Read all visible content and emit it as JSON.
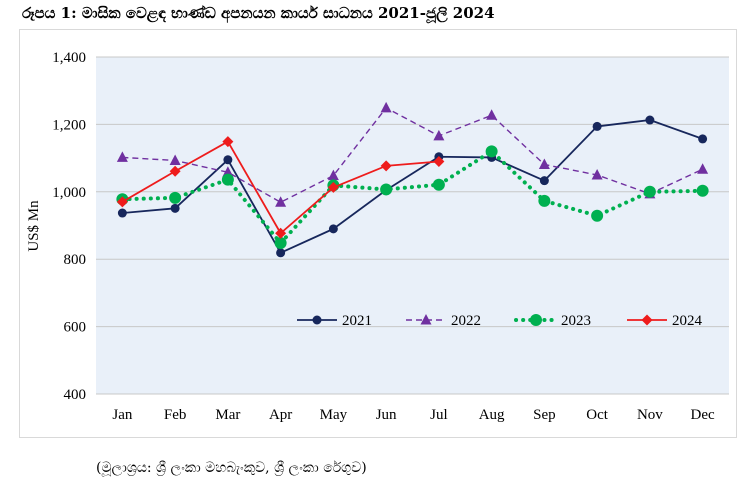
{
  "figure": {
    "title": "රූපය 1: මාසික වෙළඳ භාණ්ඩ අපනයන කාර්ය සාධනය 2021-ජූලි 2024",
    "source": "(මූලාශ්‍රය: ශ්‍රී ලංකා මහබැංකුව, ශ්‍රී ලංකා රේගුව)"
  },
  "chart_data": {
    "type": "line",
    "title": "",
    "xlabel": "",
    "ylabel": "US$ Mn",
    "ylim": [
      400,
      1400
    ],
    "yticks": [
      400,
      600,
      800,
      1000,
      1200,
      1400
    ],
    "ytick_labels": [
      "400",
      "600",
      "800",
      "1,000",
      "1,200",
      "1,400"
    ],
    "grid": "horizontal",
    "legend_position": "bottom-right-inside",
    "categories": [
      "Jan",
      "Feb",
      "Mar",
      "Apr",
      "May",
      "Jun",
      "Jul",
      "Aug",
      "Sep",
      "Oct",
      "Nov",
      "Dec"
    ],
    "series": [
      {
        "name": "2021",
        "color": "#17275c",
        "style": "solid",
        "marker": "circle",
        "values": [
          937,
          951,
          1095,
          819,
          890,
          1005,
          1104,
          1102,
          1033,
          1194,
          1213,
          1157
        ]
      },
      {
        "name": "2022",
        "color": "#7030a0",
        "style": "dashed",
        "marker": "triangle",
        "values": [
          1102,
          1093,
          1058,
          969,
          1048,
          1249,
          1166,
          1227,
          1081,
          1050,
          994,
          1067
        ]
      },
      {
        "name": "2023",
        "color": "#00b050",
        "style": "dotted",
        "marker": "circle-large",
        "values": [
          978,
          982,
          1036,
          848,
          1019,
          1007,
          1021,
          1120,
          973,
          929,
          1000,
          1003
        ]
      },
      {
        "name": "2024",
        "color": "#ee1c1c",
        "style": "solid",
        "marker": "diamond",
        "values": [
          970,
          1061,
          1149,
          877,
          1013,
          1077,
          1090,
          null,
          null,
          null,
          null,
          null
        ]
      }
    ]
  }
}
